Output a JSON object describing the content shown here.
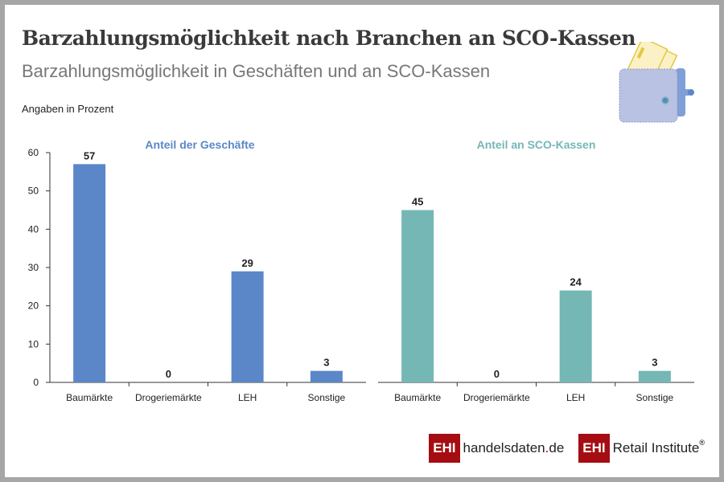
{
  "title": "Barzahlungsmöglichkeit nach Branchen an SCO-Kassen",
  "subtitle": "Barzahlungsmöglichkeit in Geschäften und an SCO-Kassen",
  "unit_note": "Angaben in Prozent",
  "logos": {
    "logo1_mark": "EHI",
    "logo1_text": "handelsdaten",
    "logo1_dot": ".",
    "logo1_tld": "de",
    "logo2_mark": "EHI",
    "logo2_text": "Retail Institute",
    "logo2_reg": "®"
  },
  "chart_data": [
    {
      "type": "bar",
      "title": "Anteil der Geschäfte",
      "categories": [
        "Baumärkte",
        "Drogeriemärkte",
        "LEH",
        "Sonstige"
      ],
      "values": [
        57,
        0,
        29,
        3
      ],
      "ylim": [
        0,
        60
      ],
      "yticks": [
        0,
        10,
        20,
        30,
        40,
        50,
        60
      ],
      "color": "#5b87c9",
      "grid": false
    },
    {
      "type": "bar",
      "title": "Anteil an SCO-Kassen",
      "categories": [
        "Baumärkte",
        "Drogeriemärkte",
        "LEH",
        "Sonstige"
      ],
      "values": [
        45,
        0,
        24,
        3
      ],
      "ylim": [
        0,
        60
      ],
      "color": "#74b7b5",
      "grid": false
    }
  ]
}
